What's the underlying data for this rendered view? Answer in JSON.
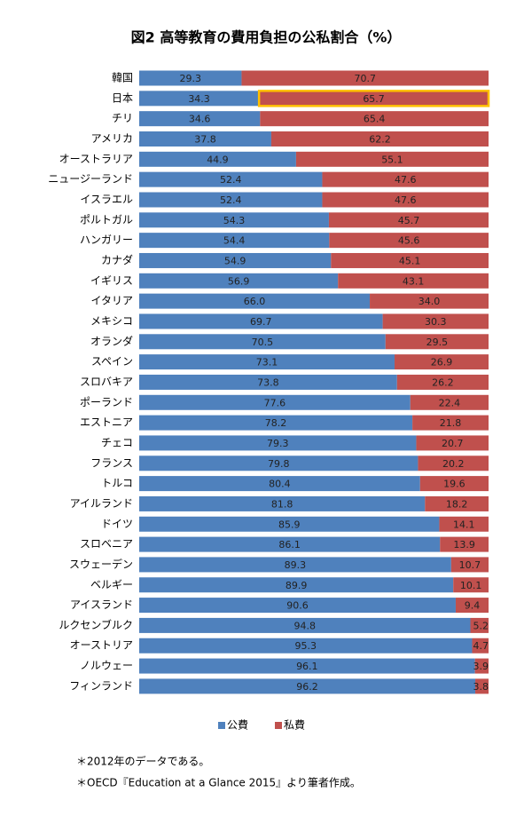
{
  "chart_data": {
    "type": "stacked_barh",
    "title": "図2  高等教育の費用負担の公私割合（%）",
    "categories": [
      "韓国",
      "日本",
      "チリ",
      "アメリカ",
      "オーストラリア",
      "ニュージーランド",
      "イスラエル",
      "ポルトガル",
      "ハンガリー",
      "カナダ",
      "イギリス",
      "イタリア",
      "メキシコ",
      "オランダ",
      "スペイン",
      "スロバキア",
      "ポーランド",
      "エストニア",
      "チェコ",
      "フランス",
      "トルコ",
      "アイルランド",
      "ドイツ",
      "スロベニア",
      "スウェーデン",
      "ベルギー",
      "アイスランド",
      "ルクセンブルク",
      "オーストリア",
      "ノルウェー",
      "フィンランド"
    ],
    "series": [
      {
        "name": "公費",
        "color": "#4f81bd",
        "values": [
          29.3,
          34.3,
          34.6,
          37.8,
          44.9,
          52.4,
          52.4,
          54.3,
          54.4,
          54.9,
          56.9,
          66.0,
          69.7,
          70.5,
          73.1,
          73.8,
          77.6,
          78.2,
          79.3,
          79.8,
          80.4,
          81.8,
          85.9,
          86.1,
          89.3,
          89.9,
          90.6,
          94.8,
          95.3,
          96.1,
          96.2
        ],
        "value_labels": [
          "29.3",
          "34.3",
          "34.6",
          "37.8",
          "44.9",
          "52.4",
          "52.4",
          "54.3",
          "54.4",
          "54.9",
          "56.9",
          "66.0",
          "69.7",
          "70.5",
          "73.1",
          "73.8",
          "77.6",
          "78.2",
          "79.3",
          "79.8",
          "80.4",
          "81.8",
          "85.9",
          "86.1",
          "89.3",
          "89.9",
          "90.6",
          "94.8",
          "95.3",
          "96.1",
          "96.2"
        ]
      },
      {
        "name": "私費",
        "color": "#c0504d",
        "values": [
          70.7,
          65.7,
          65.4,
          62.2,
          55.1,
          47.6,
          47.6,
          45.7,
          45.6,
          45.1,
          43.1,
          34.0,
          30.3,
          29.5,
          26.9,
          26.2,
          22.4,
          21.8,
          20.7,
          20.2,
          19.6,
          18.2,
          14.1,
          13.9,
          10.7,
          10.1,
          9.4,
          5.2,
          4.7,
          3.9,
          3.8
        ],
        "value_labels": [
          "70.7",
          "65.7",
          "65.4",
          "62.2",
          "55.1",
          "47.6",
          "47.6",
          "45.7",
          "45.6",
          "45.1",
          "43.1",
          "34.0",
          "30.3",
          "29.5",
          "26.9",
          "26.2",
          "22.4",
          "21.8",
          "20.7",
          "20.2",
          "19.6",
          "18.2",
          "14.1",
          "13.9",
          "10.7",
          "10.1",
          "9.4",
          "5.2",
          "4.7",
          "3.9",
          "3.8"
        ]
      }
    ],
    "xlim": [
      0,
      100
    ],
    "highlight": {
      "series": 1,
      "category": 1,
      "color": "#ffc000"
    },
    "notes": [
      "＊2012年のデータである。",
      "＊OECD『Education at a Glance 2015』より筆者作成。"
    ]
  }
}
